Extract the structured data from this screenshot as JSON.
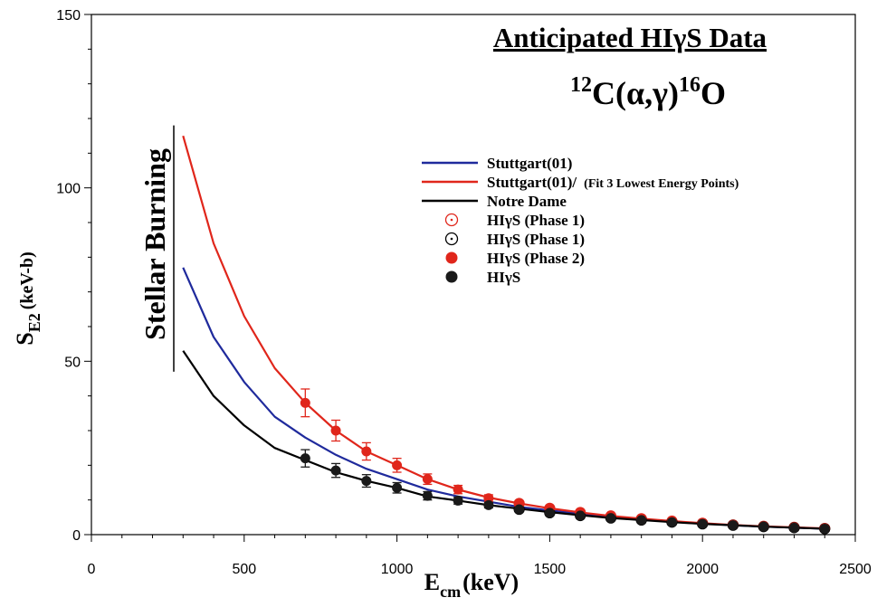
{
  "colors": {
    "stuttgart": "#1f2a9c",
    "stuttgart_fit": "#e0261b",
    "notre_dame": "#000000",
    "phase1_red": "#e0261b",
    "phase1_black": "#000000",
    "phase2": "#e0261b",
    "higs": "#1a1a1a"
  },
  "chart_data": {
    "type": "line",
    "title": "Anticipated HIγS Data",
    "subtitle": {
      "pre": "12",
      "mid": "C(α,γ)",
      "post": "16",
      "end": "O"
    },
    "xlabel": {
      "main": "E",
      "sub": "cm",
      "unit": "(keV)"
    },
    "ylabel": {
      "main": "S",
      "sub": "E2",
      "unit": "(keV-b)"
    },
    "xlim": [
      0,
      2500
    ],
    "ylim": [
      0,
      150
    ],
    "x_ticks": [
      0,
      500,
      1000,
      1500,
      2000,
      2500
    ],
    "x_tick_labels": [
      "0",
      "500",
      "1000",
      "1500",
      "2000",
      "2500"
    ],
    "y_ticks": [
      0,
      50,
      100,
      150
    ],
    "y_tick_labels": [
      "0",
      "50",
      "100",
      "150"
    ],
    "x_minor_step": 100,
    "y_minor_step": 10,
    "annotation": "Stellar Burning",
    "legend": [
      {
        "label": "Stuttgart(01)",
        "note": "",
        "kind": "line",
        "color_key": "stuttgart"
      },
      {
        "label": "Stuttgart(01)/",
        "note": "(Fit 3 Lowest Energy Points)",
        "kind": "line",
        "color_key": "stuttgart_fit"
      },
      {
        "label": "Notre Dame",
        "note": "",
        "kind": "line",
        "color_key": "notre_dame"
      },
      {
        "label": "HIγS (Phase 1)",
        "note": "",
        "kind": "dotted-circle",
        "color_key": "phase1_red"
      },
      {
        "label": "HIγS (Phase 1)",
        "note": "",
        "kind": "dotted-circle",
        "color_key": "phase1_black"
      },
      {
        "label": "HIγS (Phase 2)",
        "note": "",
        "kind": "filled-circle",
        "color_key": "phase2"
      },
      {
        "label": "HIγS",
        "note": "",
        "kind": "filled-circle",
        "color_key": "higs"
      }
    ],
    "series": [
      {
        "name": "Stuttgart(01)",
        "color_key": "stuttgart",
        "kind": "line",
        "x": [
          300,
          400,
          500,
          600,
          700,
          800,
          900,
          1000,
          1100,
          1200,
          1300,
          1400,
          1500,
          1600,
          1700,
          1800,
          1900,
          2000,
          2100,
          2200,
          2300,
          2400
        ],
        "y": [
          77,
          57,
          44,
          34,
          28,
          23,
          19,
          16,
          13,
          11,
          9.5,
          8,
          7,
          6,
          5,
          4.5,
          3.8,
          3.2,
          2.7,
          2.3,
          2,
          1.7
        ]
      },
      {
        "name": "Stuttgart(01)/",
        "color_key": "stuttgart_fit",
        "kind": "line",
        "x": [
          300,
          400,
          500,
          600,
          700,
          800,
          900,
          1000,
          1100,
          1200,
          1300,
          1400,
          1500,
          1600,
          1700,
          1800,
          1900,
          2000,
          2100,
          2200,
          2300,
          2400
        ],
        "y": [
          115,
          84,
          63,
          48,
          38,
          30,
          24,
          20,
          16,
          13,
          10.7,
          9,
          7.6,
          6.4,
          5.4,
          4.6,
          3.9,
          3.3,
          2.8,
          2.4,
          2.1,
          1.8
        ]
      },
      {
        "name": "Notre Dame",
        "color_key": "notre_dame",
        "kind": "line",
        "x": [
          300,
          400,
          500,
          600,
          700,
          800,
          900,
          1000,
          1100,
          1200,
          1300,
          1400,
          1500,
          1600,
          1700,
          1800,
          1900,
          2000,
          2100,
          2200,
          2300,
          2400
        ],
        "y": [
          53,
          40,
          31.5,
          25,
          21.5,
          18,
          15.5,
          13.5,
          11,
          9.8,
          8.5,
          7.5,
          6.5,
          5.6,
          4.8,
          4.2,
          3.6,
          3.1,
          2.7,
          2.3,
          2,
          1.7
        ]
      },
      {
        "name": "HIγS (Phase 2)",
        "color_key": "phase2",
        "kind": "filled-circle",
        "x": [
          700,
          800,
          900,
          1000,
          1100,
          1200,
          1300,
          1400,
          1500,
          1600,
          1700,
          1800,
          1900,
          2000,
          2100,
          2200,
          2300,
          2400
        ],
        "y": [
          38,
          30,
          24,
          20,
          16,
          13,
          10.5,
          9,
          7.6,
          6.4,
          5.4,
          4.6,
          3.9,
          3.3,
          2.8,
          2.4,
          2.1,
          1.8
        ],
        "err": [
          4,
          3,
          2.5,
          2,
          1.5,
          1.2,
          1,
          0.8,
          0.6,
          0.5,
          0.4,
          0.3,
          0.3,
          0.2,
          0.2,
          0.2,
          0.1,
          0.1
        ]
      },
      {
        "name": "HIγS",
        "color_key": "higs",
        "kind": "filled-circle",
        "x": [
          700,
          800,
          900,
          1000,
          1100,
          1200,
          1300,
          1400,
          1500,
          1600,
          1700,
          1800,
          1900,
          2000,
          2100,
          2200,
          2300,
          2400
        ],
        "y": [
          22,
          18.5,
          15.5,
          13.5,
          11.2,
          9.8,
          8.5,
          7.3,
          6.3,
          5.5,
          4.8,
          4.2,
          3.6,
          3.1,
          2.7,
          2.3,
          2.0,
          1.7
        ],
        "err": [
          2.5,
          2,
          1.8,
          1.5,
          1.2,
          1,
          0.8,
          0.6,
          0.5,
          0.4,
          0.3,
          0.3,
          0.2,
          0.2,
          0.2,
          0.1,
          0.1,
          0.1
        ]
      },
      {
        "name": "HIγS (Phase 1)",
        "color_key": "phase1_red",
        "kind": "dotted-circle",
        "x": [
          1400,
          1500,
          1600,
          1700,
          1800,
          1900,
          2000,
          2100,
          2200,
          2300,
          2400
        ],
        "y": [
          9,
          7.6,
          6.4,
          5.4,
          4.6,
          3.9,
          3.3,
          2.8,
          2.4,
          2.1,
          1.8
        ]
      },
      {
        "name": "HIγS (Phase 1)",
        "color_key": "phase1_black",
        "kind": "dotted-circle",
        "x": [
          1400,
          1500,
          1600,
          1700,
          1800,
          1900,
          2000,
          2100,
          2200,
          2300,
          2400
        ],
        "y": [
          7.3,
          6.3,
          5.5,
          4.8,
          4.2,
          3.6,
          3.1,
          2.7,
          2.3,
          2.0,
          1.7
        ]
      }
    ]
  }
}
